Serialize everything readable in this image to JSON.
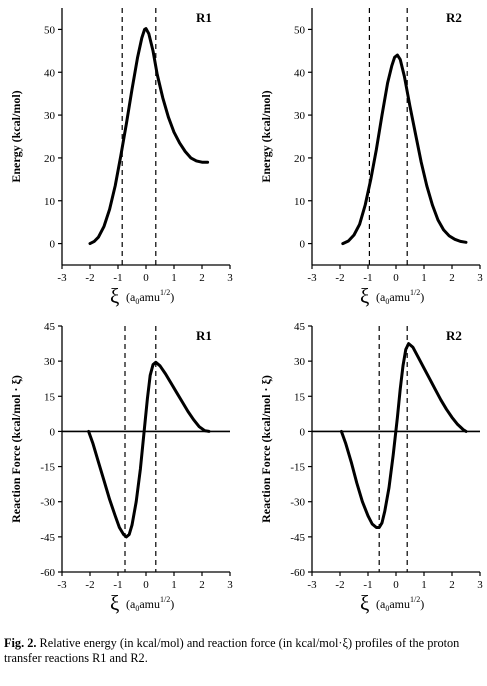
{
  "chart_data": [
    {
      "type": "line",
      "panel": "top-left",
      "label": "R1",
      "ylabel": "Energy (kcal/mol)",
      "xlabel_symbol": "ξ",
      "xlabel_unit_a": "(a",
      "xlabel_unit_sub": "0",
      "xlabel_unit_b": "amu",
      "xlabel_unit_sup": "1/2",
      "xlabel_unit_c": ")",
      "xlim": [
        -3,
        3
      ],
      "ylim": [
        -5,
        55
      ],
      "xticks": [
        "-3",
        "-2",
        "-1",
        "0",
        "1",
        "2",
        "3"
      ],
      "yticks": [
        0,
        10,
        20,
        30,
        40,
        50
      ],
      "ytick_labels": [
        "0",
        "10",
        "20",
        "30",
        "40",
        "50"
      ],
      "zero_line": false,
      "dashed_x": [
        -0.85,
        0.35
      ],
      "x": [
        -2.0,
        -1.85,
        -1.7,
        -1.5,
        -1.3,
        -1.1,
        -0.9,
        -0.7,
        -0.5,
        -0.3,
        -0.15,
        -0.05,
        0.0,
        0.1,
        0.25,
        0.4,
        0.6,
        0.8,
        1.0,
        1.2,
        1.4,
        1.6,
        1.8,
        2.0,
        2.2
      ],
      "y": [
        0.0,
        0.5,
        1.5,
        4.0,
        8.0,
        13.5,
        20.5,
        28.0,
        36.0,
        43.5,
        48.0,
        50.0,
        50.2,
        49.0,
        45.0,
        39.5,
        34.0,
        29.5,
        26.0,
        23.5,
        21.5,
        20.0,
        19.3,
        19.0,
        19.0
      ]
    },
    {
      "type": "line",
      "panel": "top-right",
      "label": "R2",
      "ylabel": "Energy (kcal/mol)",
      "xlabel_symbol": "ξ",
      "xlabel_unit_a": "(a",
      "xlabel_unit_sub": "0",
      "xlabel_unit_b": "amu",
      "xlabel_unit_sup": "1/2",
      "xlabel_unit_c": ")",
      "xlim": [
        -3,
        3
      ],
      "ylim": [
        -5,
        55
      ],
      "xticks": [
        "-3",
        "-2",
        "-1",
        "0",
        "1",
        "2",
        "3"
      ],
      "yticks": [
        0,
        10,
        20,
        30,
        40,
        50
      ],
      "ytick_labels": [
        "0",
        "10",
        "20",
        "30",
        "40",
        "50"
      ],
      "zero_line": false,
      "dashed_x": [
        -0.95,
        0.4
      ],
      "x": [
        -1.9,
        -1.7,
        -1.5,
        -1.3,
        -1.1,
        -0.9,
        -0.7,
        -0.5,
        -0.3,
        -0.15,
        -0.05,
        0.05,
        0.15,
        0.3,
        0.5,
        0.7,
        0.9,
        1.1,
        1.3,
        1.5,
        1.7,
        1.9,
        2.1,
        2.3,
        2.5
      ],
      "y": [
        0.0,
        0.6,
        2.0,
        4.5,
        9.0,
        15.0,
        22.0,
        30.0,
        37.5,
        41.5,
        43.5,
        44.0,
        43.0,
        39.0,
        32.0,
        25.5,
        19.0,
        13.5,
        9.0,
        5.5,
        3.2,
        1.8,
        1.0,
        0.5,
        0.3
      ]
    },
    {
      "type": "line",
      "panel": "bottom-left",
      "label": "R1",
      "ylabel": "Reaction Force (kcal/mol · ξ)",
      "xlabel_symbol": "ξ",
      "xlabel_unit_a": "(a",
      "xlabel_unit_sub": "0",
      "xlabel_unit_b": "amu",
      "xlabel_unit_sup": "1/2",
      "xlabel_unit_c": ")",
      "xlim": [
        -3,
        3
      ],
      "ylim": [
        -60,
        45
      ],
      "xticks": [
        "-3",
        "-2",
        "-1",
        "0",
        "1",
        "2",
        "3"
      ],
      "yticks": [
        45,
        30,
        15,
        0,
        -15,
        -30,
        -45,
        -60
      ],
      "ytick_labels": [
        "45",
        "30",
        "15",
        "0",
        "-15",
        "-30",
        "-45",
        "-60"
      ],
      "zero_line": true,
      "dashed_x": [
        -0.75,
        0.35
      ],
      "x": [
        -2.05,
        -1.9,
        -1.7,
        -1.5,
        -1.3,
        -1.1,
        -0.95,
        -0.8,
        -0.7,
        -0.6,
        -0.5,
        -0.35,
        -0.2,
        -0.05,
        0.05,
        0.15,
        0.25,
        0.35,
        0.5,
        0.7,
        0.9,
        1.1,
        1.3,
        1.5,
        1.7,
        1.9,
        2.1,
        2.25
      ],
      "y": [
        0.0,
        -5.0,
        -13.0,
        -21.0,
        -29.0,
        -36.0,
        -41.0,
        -44.0,
        -45.0,
        -44.0,
        -40.0,
        -30.0,
        -16.0,
        2.0,
        14.0,
        24.0,
        28.5,
        29.5,
        28.0,
        24.5,
        20.5,
        16.5,
        12.5,
        8.5,
        5.0,
        2.0,
        0.3,
        0.0
      ]
    },
    {
      "type": "line",
      "panel": "bottom-right",
      "label": "R2",
      "ylabel": "Reaction Force (kcal/mol · ξ)",
      "xlabel_symbol": "ξ",
      "xlabel_unit_a": "(a",
      "xlabel_unit_sub": "0",
      "xlabel_unit_b": "amu",
      "xlabel_unit_sup": "1/2",
      "xlabel_unit_c": ")",
      "xlim": [
        -3,
        3
      ],
      "ylim": [
        -60,
        45
      ],
      "xticks": [
        "-3",
        "-2",
        "-1",
        "0",
        "1",
        "2",
        "3"
      ],
      "yticks": [
        45,
        30,
        15,
        0,
        -15,
        -30,
        -45,
        -60
      ],
      "ytick_labels": [
        "45",
        "30",
        "15",
        "0",
        "-15",
        "-30",
        "-45",
        "-60"
      ],
      "zero_line": true,
      "dashed_x": [
        -0.6,
        0.4
      ],
      "x": [
        -1.95,
        -1.8,
        -1.6,
        -1.4,
        -1.2,
        -1.0,
        -0.85,
        -0.7,
        -0.6,
        -0.5,
        -0.4,
        -0.25,
        -0.1,
        0.05,
        0.15,
        0.25,
        0.35,
        0.45,
        0.6,
        0.8,
        1.0,
        1.2,
        1.4,
        1.6,
        1.8,
        2.0,
        2.2,
        2.4,
        2.5
      ],
      "y": [
        0.0,
        -5.0,
        -13.0,
        -22.0,
        -30.0,
        -36.0,
        -39.5,
        -41.0,
        -41.0,
        -39.0,
        -34.0,
        -24.0,
        -10.0,
        6.0,
        18.0,
        28.0,
        35.0,
        37.5,
        36.0,
        31.5,
        27.0,
        22.5,
        18.0,
        13.5,
        9.5,
        6.0,
        3.0,
        0.8,
        0.0
      ]
    }
  ],
  "caption": {
    "prefix": "Fig. 2.",
    "text": "Relative energy (in kcal/mol) and reaction force (in kcal/mol·ξ) profiles of the proton transfer reactions R1 and R2."
  }
}
